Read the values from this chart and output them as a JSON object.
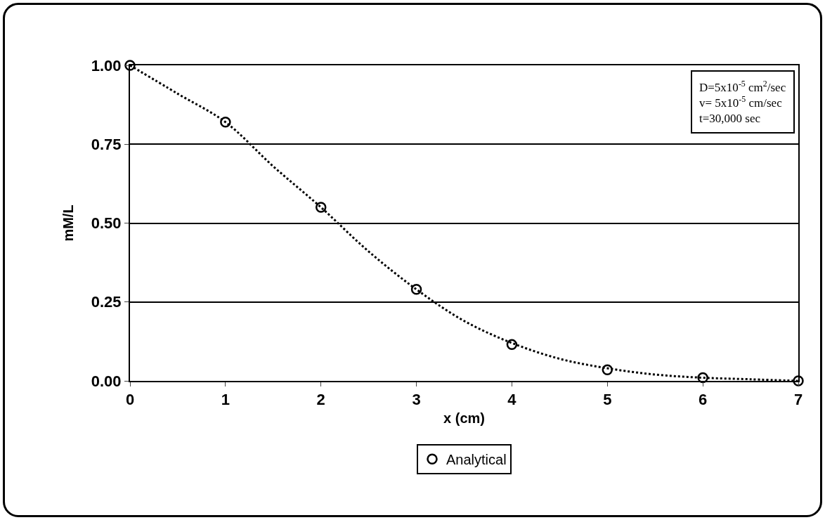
{
  "chart_data": {
    "type": "scatter",
    "xlabel": "x (cm)",
    "ylabel": "mM/L",
    "annotations": [
      "D=5x10$^{-5}$ cm$^{2}$/sec",
      "v= 5x10$^{-5}$ cm/sec",
      "t=30,000 sec"
    ],
    "series": [
      {
        "name": "Analytical",
        "type": "scatter",
        "color": "#000000",
        "marker": "circle",
        "x": [
          0,
          1,
          2,
          3,
          4,
          5,
          6,
          7
        ],
        "values": [
          1.0,
          0.82,
          0.55,
          0.29,
          0.115,
          0.035,
          0.01,
          0.0
        ]
      },
      {
        "type": "line",
        "color": "#000000",
        "line_style": "dotted",
        "marker": "none",
        "x": [
          0,
          0.5,
          1,
          1.5,
          2,
          2.5,
          3,
          3.5,
          4,
          4.5,
          5,
          5.5,
          6,
          6.5,
          7
        ],
        "values": [
          1.0,
          0.91,
          0.82,
          0.68,
          0.55,
          0.41,
          0.29,
          0.19,
          0.12,
          0.07,
          0.04,
          0.02,
          0.01,
          0.005,
          0.0
        ]
      }
    ],
    "xlim": [
      0,
      7
    ],
    "xticks": [
      0,
      1,
      2,
      3,
      4,
      5,
      6,
      7
    ],
    "ylim": [
      0,
      1
    ],
    "yticks": [
      {
        "value": 0,
        "label": "0.00"
      },
      {
        "value": 0.25,
        "label": "0.25"
      },
      {
        "value": 0.5,
        "label": "0.50"
      },
      {
        "value": 0.75,
        "label": "0.75"
      },
      {
        "value": 1,
        "label": "1.00"
      }
    ],
    "grid": "y",
    "legend": "bottom"
  }
}
